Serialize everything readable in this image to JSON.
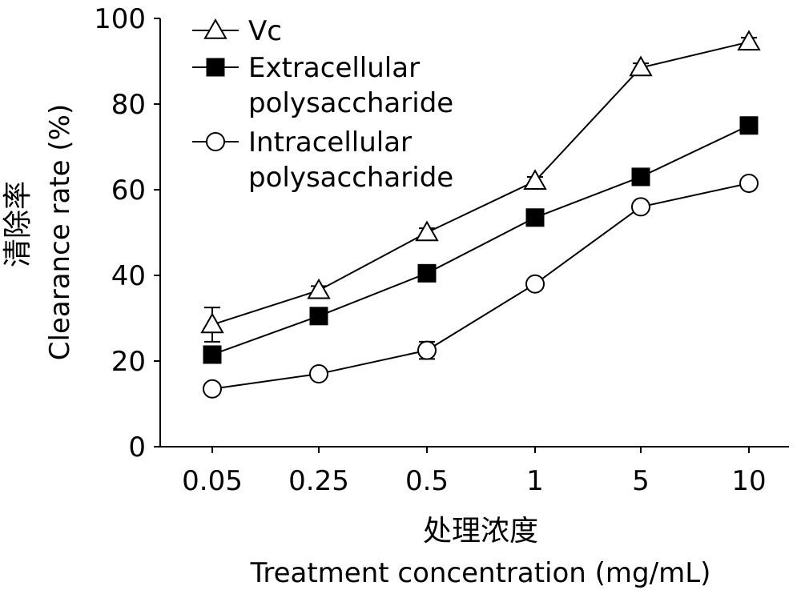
{
  "chart_data": {
    "type": "line",
    "categories": [
      "0.05",
      "0.25",
      "0.5",
      "1",
      "5",
      "10"
    ],
    "series": [
      {
        "name": "Vc",
        "marker": "triangle-open",
        "values": [
          28.5,
          36.5,
          50.0,
          62.0,
          88.5,
          94.5
        ],
        "errors": [
          4,
          1,
          1,
          1,
          1,
          1
        ]
      },
      {
        "name": "Extracellular polysaccharide",
        "legend_lines": [
          "Extracellular",
          "polysaccharide"
        ],
        "marker": "square-filled",
        "values": [
          21.5,
          30.5,
          40.5,
          53.5,
          63.0,
          75.0
        ],
        "errors": [
          1,
          1,
          1,
          1,
          1,
          1
        ]
      },
      {
        "name": "Intracellular polysaccharide",
        "legend_lines": [
          "Intracellular",
          "polysaccharide"
        ],
        "marker": "circle-open",
        "values": [
          13.5,
          17.0,
          22.5,
          38.0,
          56.0,
          61.5
        ],
        "errors": [
          1,
          1,
          2,
          1,
          1,
          1
        ]
      }
    ],
    "ylim": [
      0,
      100
    ],
    "yticks": [
      "0",
      "20",
      "40",
      "60",
      "80",
      "100"
    ],
    "ylabel_cn": "清除率",
    "ylabel_en": "Clearance rate (%)",
    "xlabel_cn": "处理浓度",
    "xlabel_en": "Treatment concentration (mg/mL)",
    "legend_position": "top-left",
    "grid": false
  }
}
